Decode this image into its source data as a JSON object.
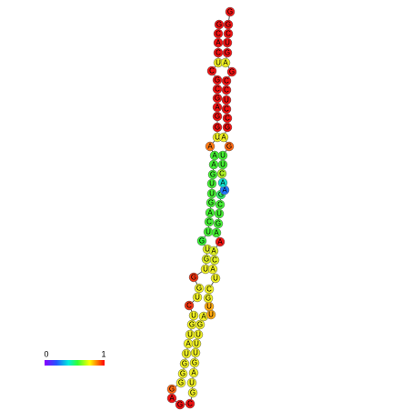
{
  "legend": {
    "min_label": "0",
    "max_label": "1"
  },
  "nodes": [
    {
      "label": "G",
      "color": "#ee1111"
    },
    {
      "label": "C",
      "color": "#ee1111"
    },
    {
      "label": "A",
      "color": "#ee1111"
    },
    {
      "label": "C",
      "color": "#ee1111"
    },
    {
      "label": "U",
      "color": "#eeee22"
    },
    {
      "label": "C",
      "color": "#ee1111"
    },
    {
      "label": "G",
      "color": "#ee1111"
    },
    {
      "label": "C",
      "color": "#ee1111"
    },
    {
      "label": "G",
      "color": "#ee1111"
    },
    {
      "label": "A",
      "color": "#ee1111"
    },
    {
      "label": "G",
      "color": "#ee1111"
    },
    {
      "label": "G",
      "color": "#ee1111"
    },
    {
      "label": "U",
      "color": "#eeee22"
    },
    {
      "label": "A",
      "color": "#ff7711"
    },
    {
      "label": "A",
      "color": "#44ee33"
    },
    {
      "label": "A",
      "color": "#44ee33"
    },
    {
      "label": "G",
      "color": "#44ee33"
    },
    {
      "label": "U",
      "color": "#44ee33"
    },
    {
      "label": "U",
      "color": "#44ee33"
    },
    {
      "label": "G",
      "color": "#44ee33"
    },
    {
      "label": "A",
      "color": "#44ee33"
    },
    {
      "label": "C",
      "color": "#44ee33"
    },
    {
      "label": "U",
      "color": "#44ee33"
    },
    {
      "label": "G",
      "color": "#33ee33"
    },
    {
      "label": "U",
      "color": "#ddee22"
    },
    {
      "label": "G",
      "color": "#ddee22"
    },
    {
      "label": "U",
      "color": "#eeee22"
    },
    {
      "label": "G",
      "color": "#ee3311"
    },
    {
      "label": "G",
      "color": "#eeee22"
    },
    {
      "label": "U",
      "color": "#eeee22"
    },
    {
      "label": "C",
      "color": "#ee3311"
    },
    {
      "label": "U",
      "color": "#eeee22"
    },
    {
      "label": "G",
      "color": "#eeee22"
    },
    {
      "label": "U",
      "color": "#eeee22"
    },
    {
      "label": "A",
      "color": "#eeee22"
    },
    {
      "label": "U",
      "color": "#eeee22"
    },
    {
      "label": "G",
      "color": "#eeee22"
    },
    {
      "label": "G",
      "color": "#eeee22"
    },
    {
      "label": "G",
      "color": "#eeee22"
    },
    {
      "label": "G",
      "color": "#ff6611"
    },
    {
      "label": "A",
      "color": "#ee1111"
    },
    {
      "label": "G",
      "color": "#ee1111"
    },
    {
      "label": "C",
      "color": "#ee1111"
    },
    {
      "label": "G",
      "color": "#eeee22"
    },
    {
      "label": "U",
      "color": "#eeee22"
    },
    {
      "label": "A",
      "color": "#eeee22"
    },
    {
      "label": "G",
      "color": "#eeee22"
    },
    {
      "label": "U",
      "color": "#eeee22"
    },
    {
      "label": "U",
      "color": "#eeee22"
    },
    {
      "label": "U",
      "color": "#eeee22"
    },
    {
      "label": "G",
      "color": "#eeee22"
    },
    {
      "label": "A",
      "color": "#eeee22"
    },
    {
      "label": "U",
      "color": "#ffaa11"
    },
    {
      "label": "U",
      "color": "#ffaa11"
    },
    {
      "label": "G",
      "color": "#eeee22"
    },
    {
      "label": "C",
      "color": "#eeee22"
    },
    {
      "label": "U",
      "color": "#eeee22"
    },
    {
      "label": "A",
      "color": "#eeee22"
    },
    {
      "label": "C",
      "color": "#ddee22"
    },
    {
      "label": "A",
      "color": "#ddee22"
    },
    {
      "label": "A",
      "color": "#ee1111"
    },
    {
      "label": "A",
      "color": "#44ee33"
    },
    {
      "label": "G",
      "color": "#44ee33"
    },
    {
      "label": "U",
      "color": "#44ee33"
    },
    {
      "label": "C",
      "color": "#44ee33"
    },
    {
      "label": "G",
      "color": "#33ee66"
    },
    {
      "label": "A",
      "color": "#2277ff"
    },
    {
      "label": "A",
      "color": "#11ddcc"
    },
    {
      "label": "C",
      "color": "#aaee22"
    },
    {
      "label": "U",
      "color": "#44ee33"
    },
    {
      "label": "U",
      "color": "#44ee33"
    },
    {
      "label": "G",
      "color": "#ff6611"
    },
    {
      "label": "A",
      "color": "#eeee22"
    },
    {
      "label": "G",
      "color": "#ee1111"
    },
    {
      "label": "C",
      "color": "#ee1111"
    },
    {
      "label": "C",
      "color": "#ee1111"
    },
    {
      "label": "U",
      "color": "#ee1111"
    },
    {
      "label": "C",
      "color": "#ee1111"
    },
    {
      "label": "C",
      "color": "#ee1111"
    },
    {
      "label": "G",
      "color": "#ee1111"
    },
    {
      "label": "A",
      "color": "#eeee22"
    },
    {
      "label": "G",
      "color": "#ee1111"
    },
    {
      "label": "U",
      "color": "#ee1111"
    },
    {
      "label": "C",
      "color": "#ee1111"
    },
    {
      "label": "G",
      "color": "#ee1111"
    },
    {
      "label": "G",
      "color": "#ee1111"
    }
  ]
}
